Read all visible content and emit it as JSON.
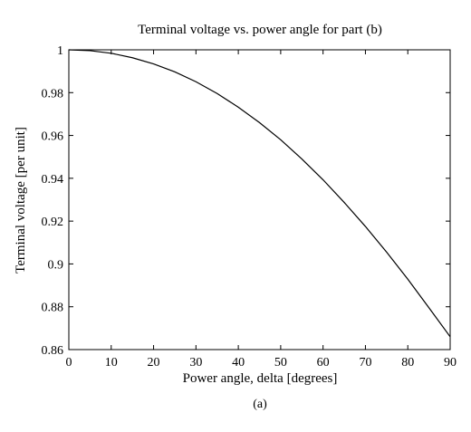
{
  "chart_data": {
    "type": "line",
    "title": "Terminal voltage vs. power angle for part (b)",
    "xlabel": "Power angle, delta [degrees]",
    "ylabel": "Terminal voltage [per unit]",
    "caption": "(a)",
    "xlim": [
      0,
      90
    ],
    "ylim": [
      0.86,
      1.0
    ],
    "xticks": [
      0,
      10,
      20,
      30,
      40,
      50,
      60,
      70,
      80,
      90
    ],
    "yticks": [
      0.86,
      0.88,
      0.9,
      0.92,
      0.94,
      0.96,
      0.98,
      1.0
    ],
    "xtick_labels": [
      "0",
      "10",
      "20",
      "30",
      "40",
      "50",
      "60",
      "70",
      "80",
      "90"
    ],
    "ytick_labels": [
      "0.86",
      "0.88",
      "0.9",
      "0.92",
      "0.94",
      "0.96",
      "0.98",
      "1"
    ],
    "grid": false,
    "series": [
      {
        "x": [
          0,
          5,
          10,
          15,
          20,
          25,
          30,
          35,
          40,
          45,
          50,
          55,
          60,
          65,
          70,
          75,
          80,
          85,
          90
        ],
        "y": [
          1.0,
          0.9996,
          0.9984,
          0.9963,
          0.9934,
          0.9897,
          0.9851,
          0.9796,
          0.9732,
          0.966,
          0.958,
          0.949,
          0.9393,
          0.9287,
          0.9175,
          0.9055,
          0.8929,
          0.8795,
          0.866
        ],
        "color": "#000000"
      }
    ]
  }
}
